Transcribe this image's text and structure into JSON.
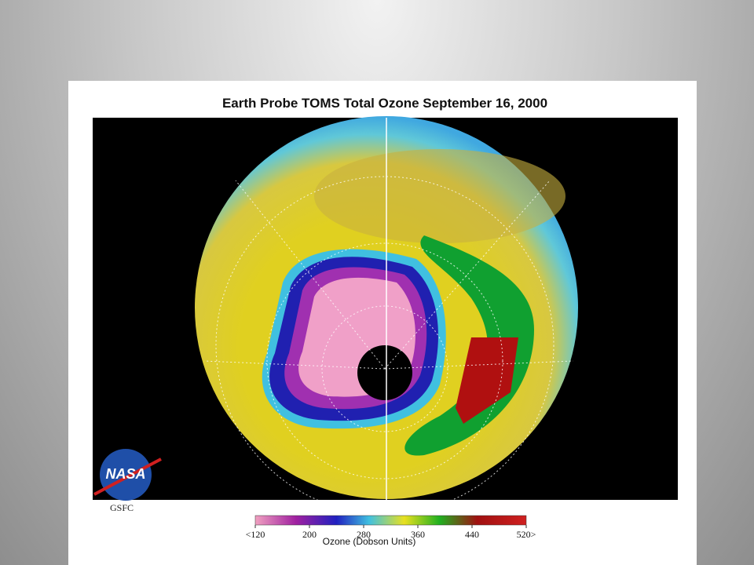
{
  "title": "Earth Probe TOMS Total Ozone September 16, 2000",
  "logo": {
    "name": "NASA",
    "caption": "GSFC"
  },
  "colorbar": {
    "title": "Ozone (Dobson Units)",
    "range": [
      120,
      520
    ],
    "ticks": [
      {
        "value": 120,
        "label": "<120"
      },
      200,
      280,
      360,
      440,
      {
        "value": 520,
        "label": "520>"
      }
    ]
  }
}
